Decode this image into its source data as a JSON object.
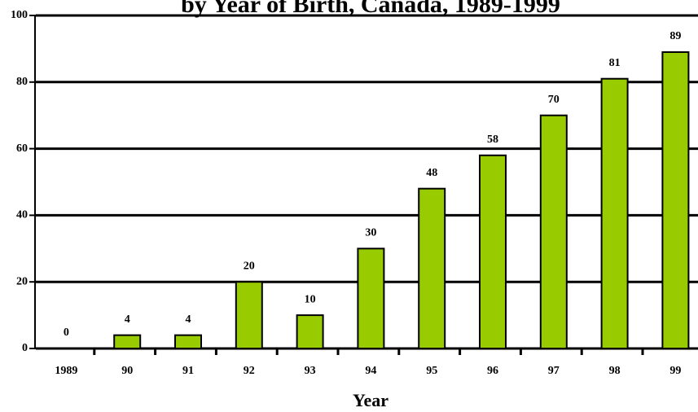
{
  "chart_data": {
    "type": "bar",
    "title": "by Year of Birth, Canada, 1989-1999",
    "x_label": "Year",
    "categories": [
      "1989",
      "90",
      "91",
      "92",
      "93",
      "94",
      "95",
      "96",
      "97",
      "98",
      "99"
    ],
    "values": [
      0,
      4,
      4,
      20,
      10,
      30,
      48,
      58,
      70,
      81,
      89
    ],
    "color": "#99cc00",
    "ylim": [
      0,
      100
    ],
    "yticks": [
      0,
      20,
      40,
      60,
      80,
      100
    ],
    "grid": true
  }
}
